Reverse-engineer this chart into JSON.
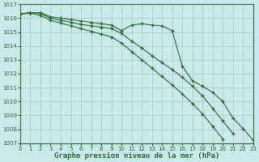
{
  "hours": [
    0,
    1,
    2,
    3,
    4,
    5,
    6,
    7,
    8,
    9,
    10,
    11,
    12,
    13,
    14,
    15,
    16,
    17,
    18,
    19,
    20,
    21,
    22,
    23
  ],
  "series": [
    [
      1016.3,
      1016.4,
      1016.4,
      1016.1,
      1016.0,
      1015.9,
      1015.8,
      1015.7,
      1015.6,
      1015.5,
      1015.1,
      1015.5,
      1015.6,
      1015.5,
      1015.45,
      1015.1,
      1012.55,
      1011.5,
      1011.1,
      1010.65,
      1010.0,
      1008.8,
      1008.05,
      1007.2
    ],
    [
      1016.3,
      1016.4,
      1016.35,
      1016.0,
      1015.85,
      1015.7,
      1015.55,
      1015.45,
      1015.35,
      1015.25,
      1014.9,
      1014.35,
      1013.85,
      1013.3,
      1012.8,
      1012.3,
      1011.75,
      1011.1,
      1010.4,
      1009.5,
      1008.6,
      1007.7,
      null,
      null
    ],
    [
      1016.3,
      1016.35,
      1016.2,
      1015.85,
      1015.65,
      1015.45,
      1015.25,
      1015.05,
      1014.85,
      1014.65,
      1014.2,
      1013.6,
      1013.0,
      1012.4,
      1011.8,
      1011.2,
      1010.55,
      1009.85,
      1009.1,
      1008.2,
      1007.3,
      null,
      null,
      null
    ]
  ],
  "line_color": "#2d6a2d",
  "bg_color": "#c8eaea",
  "grid_color": "#a8caca",
  "xlabel": "Graphe pression niveau de la mer (hPa)",
  "xlim": [
    0,
    23
  ],
  "ylim": [
    1007,
    1017
  ],
  "yticks": [
    1007,
    1008,
    1009,
    1010,
    1011,
    1012,
    1013,
    1014,
    1015,
    1016,
    1017
  ],
  "xticks": [
    0,
    1,
    2,
    3,
    4,
    5,
    6,
    7,
    8,
    9,
    10,
    11,
    12,
    13,
    14,
    15,
    16,
    17,
    18,
    19,
    20,
    21,
    22,
    23
  ]
}
